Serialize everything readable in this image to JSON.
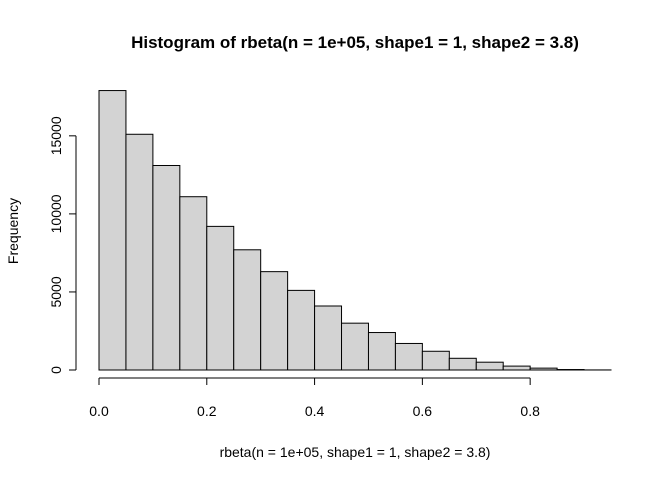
{
  "chart_data": {
    "type": "bar",
    "title": "Histogram of rbeta(n = 1e+05, shape1 = 1, shape2 = 3.8)",
    "xlabel": "rbeta(n = 1e+05, shape1 = 1, shape2 = 3.8)",
    "ylabel": "Frequency",
    "bin_edges": [
      0.0,
      0.05,
      0.1,
      0.15,
      0.2,
      0.25,
      0.3,
      0.35,
      0.4,
      0.45,
      0.5,
      0.55,
      0.6,
      0.65,
      0.7,
      0.75,
      0.8,
      0.85,
      0.9,
      0.95
    ],
    "values": [
      17900,
      15100,
      13100,
      11100,
      9200,
      7700,
      6300,
      5100,
      4100,
      3000,
      2400,
      1700,
      1200,
      750,
      500,
      250,
      120,
      30,
      5
    ],
    "xlim": [
      0.0,
      0.95
    ],
    "ylim": [
      0,
      18000
    ],
    "x_ticks": [
      "0.0",
      "0.2",
      "0.4",
      "0.6",
      "0.8"
    ],
    "y_ticks": [
      "0",
      "5000",
      "10000",
      "15000"
    ],
    "grid": false
  }
}
